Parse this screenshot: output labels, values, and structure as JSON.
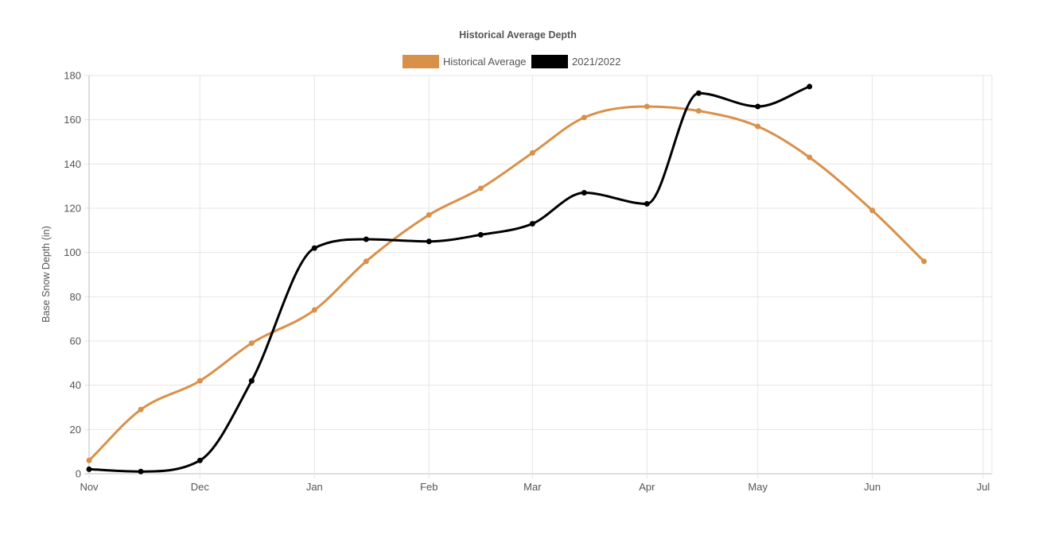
{
  "chart_data": {
    "type": "line",
    "title": "Historical Average Depth",
    "ylabel": "Base Snow Depth (in)",
    "xlabel": "",
    "ylim": [
      0,
      180
    ],
    "y_ticks": [
      0,
      20,
      40,
      60,
      80,
      100,
      120,
      140,
      160,
      180
    ],
    "x_ticks": [
      "Nov",
      "Dec",
      "Jan",
      "Feb",
      "Mar",
      "Apr",
      "May",
      "Jun",
      "Jul"
    ],
    "x_range": [
      "Nov 1",
      "Jul 1"
    ],
    "grid": true,
    "legend_position": "top",
    "series": [
      {
        "name": "Historical Average",
        "color": "#d9914a",
        "points": [
          {
            "x": "Nov 1",
            "y": 6
          },
          {
            "x": "Nov 15",
            "y": 29
          },
          {
            "x": "Dec 1",
            "y": 42
          },
          {
            "x": "Dec 15",
            "y": 59
          },
          {
            "x": "Jan 1",
            "y": 74
          },
          {
            "x": "Jan 15",
            "y": 96
          },
          {
            "x": "Feb 1",
            "y": 117
          },
          {
            "x": "Feb 15",
            "y": 129
          },
          {
            "x": "Mar 1",
            "y": 145
          },
          {
            "x": "Mar 15",
            "y": 161
          },
          {
            "x": "Apr 1",
            "y": 166
          },
          {
            "x": "Apr 15",
            "y": 164
          },
          {
            "x": "May 1",
            "y": 157
          },
          {
            "x": "May 15",
            "y": 143
          },
          {
            "x": "Jun 1",
            "y": 119
          },
          {
            "x": "Jun 15",
            "y": 96
          }
        ]
      },
      {
        "name": "2021/2022",
        "color": "#000000",
        "points": [
          {
            "x": "Nov 1",
            "y": 2
          },
          {
            "x": "Nov 15",
            "y": 1
          },
          {
            "x": "Dec 1",
            "y": 6
          },
          {
            "x": "Dec 15",
            "y": 42
          },
          {
            "x": "Jan 1",
            "y": 102
          },
          {
            "x": "Jan 15",
            "y": 106
          },
          {
            "x": "Feb 1",
            "y": 105
          },
          {
            "x": "Feb 15",
            "y": 108
          },
          {
            "x": "Mar 1",
            "y": 113
          },
          {
            "x": "Mar 15",
            "y": 127
          },
          {
            "x": "Apr 1",
            "y": 122
          },
          {
            "x": "Apr 15",
            "y": 172
          },
          {
            "x": "May 1",
            "y": 166
          },
          {
            "x": "May 15",
            "y": 175
          }
        ]
      }
    ]
  }
}
